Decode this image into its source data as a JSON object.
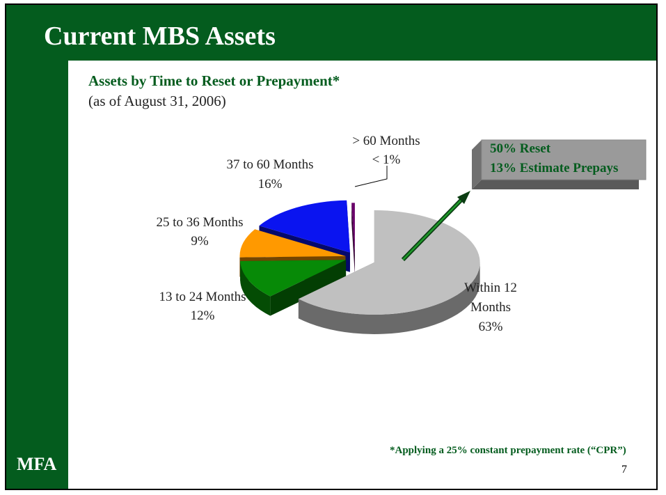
{
  "slide": {
    "title": "Current MBS Assets",
    "logo": "MFA",
    "subtitle": "Assets by Time to Reset or Prepayment*",
    "as_of": "(as of August 31, 2006)",
    "footnote": "*Applying a 25% constant prepayment rate (“CPR”)",
    "page_number": "7"
  },
  "colors": {
    "brand_green": "#045c1e",
    "slice_within12": "#c0c0c0",
    "slice_13_24": "#078a07",
    "slice_25_36": "#ff9900",
    "slice_37_60": "#0a14f0",
    "slice_over60": "#6a006a"
  },
  "callout": {
    "line1": "50% Reset",
    "line2": "13% Estimate Prepays"
  },
  "chart_data": {
    "type": "pie",
    "style": "3d-exploded",
    "slices": [
      {
        "label_line1": "Within 12",
        "label_line2": "Months",
        "pct_label": "63%",
        "value": 63
      },
      {
        "label_line1": "13 to 24 Months",
        "label_line2": "",
        "pct_label": "12%",
        "value": 12
      },
      {
        "label_line1": "25 to 36 Months",
        "label_line2": "",
        "pct_label": "9%",
        "value": 9
      },
      {
        "label_line1": "37 to 60 Months",
        "label_line2": "",
        "pct_label": "16%",
        "value": 16
      },
      {
        "label_line1": "> 60 Months",
        "label_line2": "",
        "pct_label": "< 1%",
        "value": 0.5
      }
    ]
  }
}
